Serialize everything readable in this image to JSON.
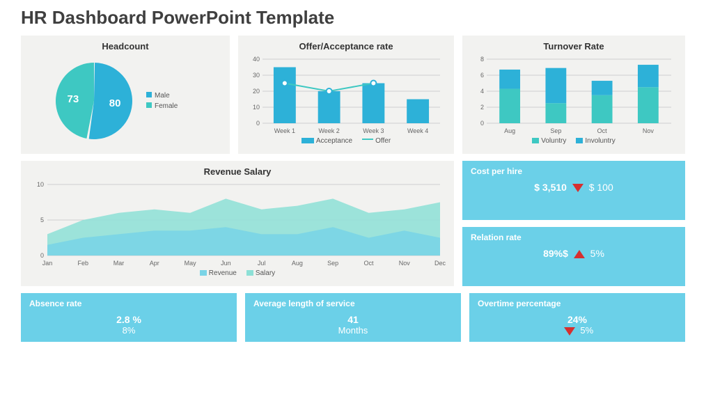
{
  "title": "HR Dashboard PowerPoint Template",
  "colors": {
    "panel_bg": "#f2f2f0",
    "stat_bg": "#6bd0e8",
    "teal": "#3ec8c2",
    "blue": "#2db1d8",
    "lightblue": "#7fd5e8",
    "red": "#d62f2f",
    "grid": "#cfcfcf",
    "text": "#333333"
  },
  "headcount": {
    "title": "Headcount",
    "type": "pie",
    "slices": [
      {
        "label": "Male",
        "value": 80,
        "color": "#2db1d8"
      },
      {
        "label": "Female",
        "value": 73,
        "color": "#3ec8c2"
      }
    ],
    "legend_labels": [
      "Male",
      "Female"
    ]
  },
  "offer": {
    "title": "Offer/Acceptance rate",
    "type": "bar-line",
    "categories": [
      "Week 1",
      "Week 2",
      "Week 3",
      "Week 4"
    ],
    "bars": {
      "label": "Acceptance",
      "color": "#2db1d8",
      "values": [
        35,
        20,
        25,
        15
      ]
    },
    "line": {
      "label": "Offer",
      "color": "#3ec8c2",
      "marker_border": "#2db1d8",
      "values": [
        25,
        20,
        25,
        null
      ]
    },
    "ylim": [
      0,
      40
    ],
    "ytick_step": 10
  },
  "turnover": {
    "title": "Turnover Rate",
    "type": "stacked-bar",
    "categories": [
      "Aug",
      "Sep",
      "Oct",
      "Nov"
    ],
    "series": [
      {
        "label": "Voluntry",
        "color": "#3ec8c2",
        "values": [
          4.3,
          2.5,
          3.5,
          4.5
        ]
      },
      {
        "label": "Involuntry",
        "color": "#2db1d8",
        "values": [
          2.4,
          4.4,
          1.8,
          2.8
        ]
      }
    ],
    "ylim": [
      0,
      8
    ],
    "ytick_step": 2
  },
  "revenue": {
    "title": "Revenue Salary",
    "type": "area",
    "categories": [
      "Jan",
      "Feb",
      "Mar",
      "Apr",
      "May",
      "Jun",
      "Jul",
      "Aug",
      "Sep",
      "Oct",
      "Nov",
      "Dec"
    ],
    "series": [
      {
        "label": "Revenue",
        "color": "#7ad4e6",
        "values": [
          1.5,
          2.5,
          3,
          3.5,
          3.5,
          4,
          3,
          3,
          4,
          2.5,
          3.5,
          2.5
        ]
      },
      {
        "label": "Salary",
        "color": "#8de0d6",
        "values": [
          3,
          5,
          6,
          6.5,
          6,
          8,
          6.5,
          7,
          8,
          6,
          6.5,
          7.5
        ]
      }
    ],
    "ylim": [
      0,
      10
    ],
    "ytick_step": 5
  },
  "stats": {
    "cost_per_hire": {
      "title": "Cost per hire",
      "value": "$ 3,510",
      "delta_dir": "down",
      "delta": "$ 100"
    },
    "relation_rate": {
      "title": "Relation rate",
      "value": "89%$",
      "delta_dir": "up",
      "delta": "5%"
    },
    "absence_rate": {
      "title": "Absence rate",
      "value": "2.8 %",
      "sub": "8%"
    },
    "avg_service": {
      "title": "Average length of service",
      "value": "41",
      "sub": "Months"
    },
    "overtime": {
      "title": "Overtime percentage",
      "value": "24%",
      "delta_dir": "down",
      "delta": "5%"
    }
  }
}
